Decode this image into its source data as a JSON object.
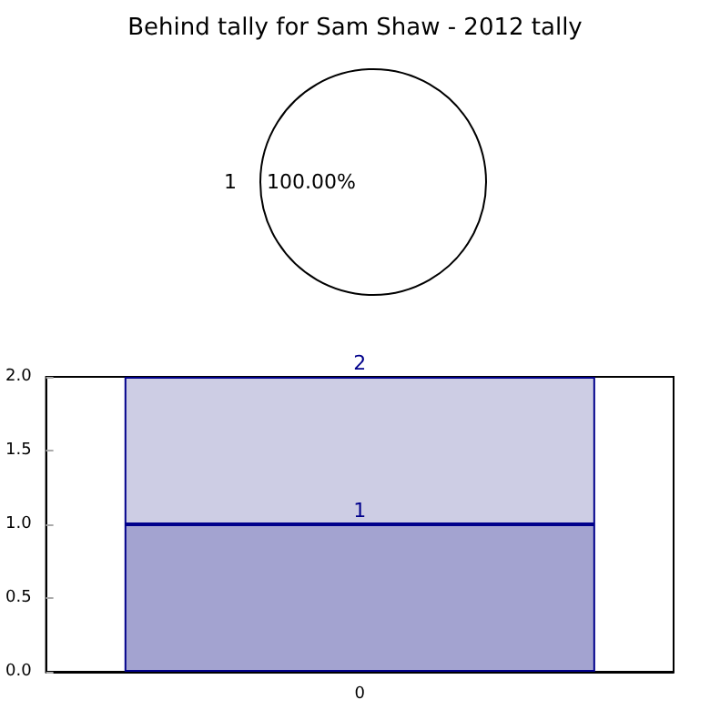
{
  "chart_data": [
    {
      "type": "pie",
      "title": "Behind tally for Sam Shaw - 2012 tally",
      "categories": [
        "1"
      ],
      "values": [
        100
      ],
      "colors": [
        "#ffffff"
      ],
      "value_labels": [
        "100.00%"
      ]
    },
    {
      "type": "bar",
      "stacked": true,
      "totals": [
        "2"
      ],
      "categories": [
        "0"
      ],
      "ylim": [
        0,
        2
      ],
      "yticks": [
        {
          "value": 0,
          "label": "0.0"
        },
        {
          "value": 0.5,
          "label": "0.5"
        },
        {
          "value": 1,
          "label": "1.0"
        },
        {
          "value": 1.5,
          "label": "1.5"
        },
        {
          "value": 2,
          "label": "2.0"
        }
      ],
      "grid": false,
      "series": [
        {
          "color": "#a3a3d0",
          "values": [
            1
          ],
          "value_labels": [
            "1"
          ]
        },
        {
          "color": "#cdcde4",
          "values": [
            1
          ]
        }
      ]
    }
  ]
}
